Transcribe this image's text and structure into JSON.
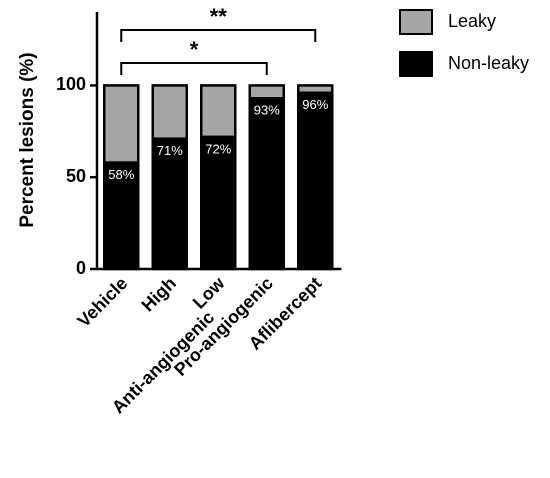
{
  "chart_data": {
    "type": "stacked-bar",
    "y_label": "Percent lesions (%)",
    "categories": [
      "Vehicle",
      "High",
      "Low",
      "Pro-angiogenic",
      "Aflibercept"
    ],
    "group_label": "Anti-angiogenic",
    "series": [
      {
        "name": "Non-leaky",
        "color": "#000000",
        "values": [
          58,
          71,
          72,
          93,
          96
        ],
        "value_labels": [
          "58%",
          "71%",
          "72%",
          "93%",
          "96%"
        ]
      },
      {
        "name": "Leaky",
        "color": "#a6a6a6",
        "values": [
          42,
          29,
          28,
          7,
          4
        ]
      }
    ],
    "ylim": [
      0,
      140
    ],
    "yticks": [
      0,
      50,
      100
    ],
    "annotations": [
      {
        "text": "**",
        "from": "Vehicle",
        "to": "Aflibercept"
      },
      {
        "text": "*",
        "from": "Vehicle",
        "to": "Pro-angiogenic"
      }
    ]
  }
}
